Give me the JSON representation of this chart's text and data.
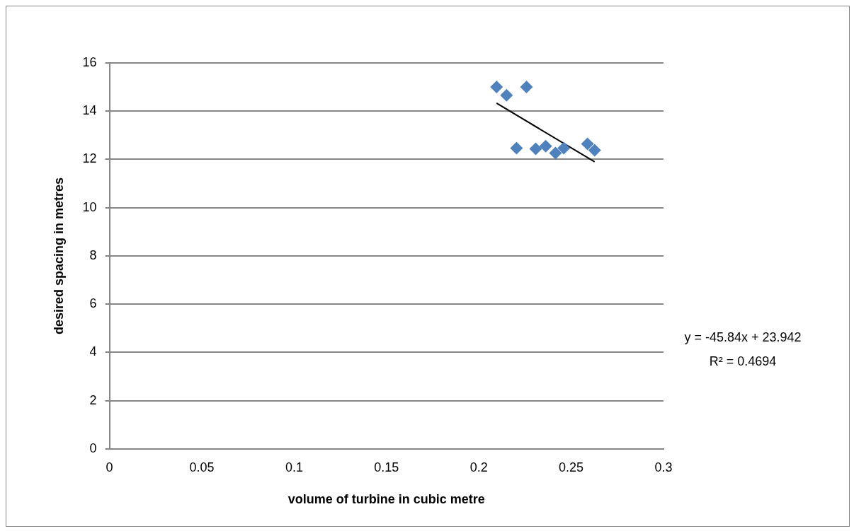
{
  "chart_data": {
    "type": "scatter",
    "xlabel": "volume of turbine in cubic metre",
    "ylabel": "desired spacing in metres",
    "xlim": [
      0,
      0.3
    ],
    "xticks": [
      0,
      0.05,
      0.1,
      0.15,
      0.2,
      0.25,
      0.3
    ],
    "ylim": [
      0,
      16
    ],
    "yticks": [
      0,
      2,
      4,
      6,
      8,
      10,
      12,
      14,
      16
    ],
    "grid": "y",
    "legend": false,
    "marker": "diamond",
    "series": [
      {
        "type": "scatter",
        "color": "#4f81bd",
        "x": [
          0.2096,
          0.215,
          0.2258,
          0.2204,
          0.2308,
          0.2362,
          0.2415,
          0.246,
          0.2588,
          0.2627
        ],
        "values": [
          15.0,
          14.66,
          15.0,
          12.47,
          12.44,
          12.55,
          12.26,
          12.47,
          12.64,
          12.38
        ]
      },
      {
        "type": "line",
        "color": "#000000",
        "marker": "none",
        "x": [
          0.2096,
          0.2627
        ],
        "values": [
          14.33,
          11.9
        ]
      }
    ],
    "annotations": [
      "y = -45.84x + 23.942",
      "R² = 0.4694"
    ]
  }
}
